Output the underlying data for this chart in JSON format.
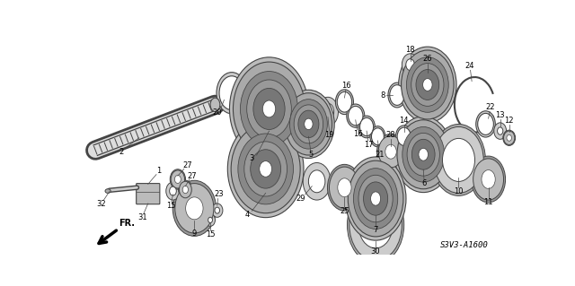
{
  "bg_color": "#ffffff",
  "fig_width": 6.4,
  "fig_height": 3.19,
  "dpi": 100,
  "diagram_code": "S3V3-A1600",
  "line_color": "#444444",
  "label_fontsize": 6.0
}
